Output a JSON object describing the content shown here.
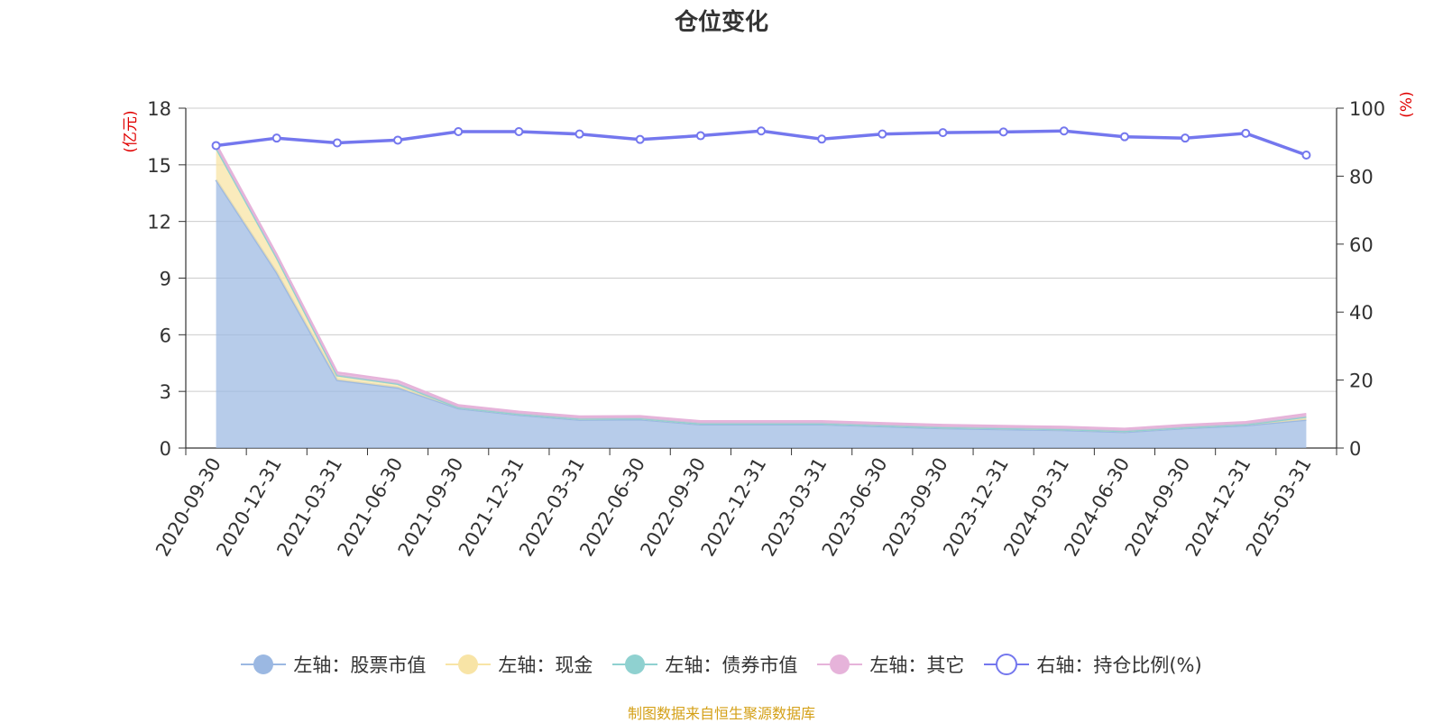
{
  "chart_data": {
    "type": "area",
    "title": "仓位变化",
    "left_axis_unit": "(亿元)",
    "right_axis_unit": "(%)",
    "left_ylim": [
      0,
      18
    ],
    "left_ticks": [
      "0",
      "3",
      "6",
      "9",
      "12",
      "15",
      "18"
    ],
    "right_ylim": [
      0,
      100
    ],
    "right_ticks": [
      "0",
      "20",
      "40",
      "60",
      "80",
      "100"
    ],
    "categories": [
      "2020-09-30",
      "2020-12-31",
      "2021-03-31",
      "2021-06-30",
      "2021-09-30",
      "2021-12-31",
      "2022-03-31",
      "2022-06-30",
      "2022-09-30",
      "2022-12-31",
      "2023-03-31",
      "2023-06-30",
      "2023-09-30",
      "2023-12-31",
      "2024-03-31",
      "2024-06-30",
      "2024-09-30",
      "2024-12-31",
      "2025-03-31"
    ],
    "series": [
      {
        "name": "左轴：股票市值",
        "axis": "left",
        "type": "stack-area",
        "color": "#9bb8e2",
        "values": [
          14.2,
          9.3,
          3.6,
          3.2,
          2.1,
          1.75,
          1.5,
          1.52,
          1.25,
          1.25,
          1.25,
          1.15,
          1.05,
          1.0,
          0.95,
          0.85,
          1.05,
          1.2,
          1.5
        ]
      },
      {
        "name": "左轴：现金",
        "axis": "left",
        "type": "stack-area",
        "color": "#f8e4a6",
        "values": [
          1.7,
          0.8,
          0.25,
          0.2,
          0.05,
          0.05,
          0.05,
          0.05,
          0.05,
          0.05,
          0.05,
          0.05,
          0.05,
          0.05,
          0.05,
          0.05,
          0.05,
          0.05,
          0.15
        ]
      },
      {
        "name": "左轴：债券市值",
        "axis": "left",
        "type": "stack-area",
        "color": "#8fd1d0",
        "values": [
          0,
          0,
          0,
          0,
          0,
          0,
          0,
          0,
          0,
          0,
          0,
          0,
          0,
          0,
          0,
          0,
          0,
          0,
          0
        ]
      },
      {
        "name": "左轴：其它",
        "axis": "left",
        "type": "stack-area",
        "color": "#e6b3da",
        "values": [
          0.2,
          0.15,
          0.15,
          0.15,
          0.12,
          0.12,
          0.12,
          0.12,
          0.12,
          0.12,
          0.12,
          0.12,
          0.12,
          0.12,
          0.12,
          0.12,
          0.12,
          0.12,
          0.15
        ]
      },
      {
        "name": "右轴：持仓比例(%)",
        "axis": "right",
        "type": "line",
        "color": "#7477ee",
        "values": [
          89,
          91.2,
          89.8,
          90.6,
          93.1,
          93.1,
          92.4,
          90.8,
          91.9,
          93.3,
          90.9,
          92.4,
          92.8,
          93.0,
          93.3,
          91.6,
          91.2,
          92.6,
          86.2
        ]
      }
    ],
    "grid": true,
    "legend_position": "bottom"
  },
  "source_text": "制图数据来自恒生聚源数据库",
  "source_color": "#d4a017",
  "axis_unit_color": "#e00000"
}
